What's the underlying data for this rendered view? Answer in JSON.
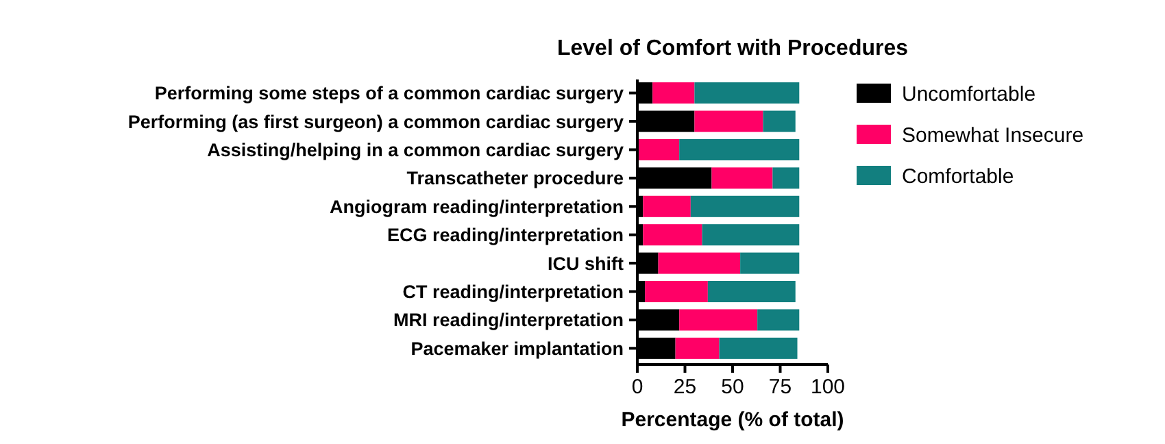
{
  "chart_data": {
    "type": "bar",
    "orientation": "horizontal",
    "stacked": true,
    "title": "Level of Comfort with Procedures",
    "xlabel": "Percentage (% of total)",
    "categories": [
      "Performing some steps of a common cardiac surgery",
      "Performing (as first surgeon) a common cardiac surgery",
      "Assisting/helping in a common cardiac surgery",
      "Transcatheter procedure",
      "Angiogram reading/interpretation",
      "ECG reading/interpretation",
      "ICU shift",
      "CT reading/interpretation",
      "MRI reading/interpretation",
      "Pacemaker implantation"
    ],
    "series": [
      {
        "name": "Uncomfortable",
        "color": "#000000",
        "values": [
          8,
          30,
          0,
          39,
          3,
          3,
          11,
          4,
          22,
          20
        ]
      },
      {
        "name": "Somewhat Insecure",
        "color": "#ff0066",
        "values": [
          22,
          36,
          22,
          32,
          25,
          31,
          43,
          33,
          41,
          23
        ]
      },
      {
        "name": "Comfortable",
        "color": "#127f7f",
        "values": [
          55,
          17,
          63,
          14,
          57,
          51,
          31,
          46,
          22,
          41
        ]
      }
    ],
    "xlim": [
      0,
      100
    ],
    "xticks": [
      0,
      25,
      50,
      75,
      100
    ],
    "grid": false,
    "legend": "right"
  }
}
